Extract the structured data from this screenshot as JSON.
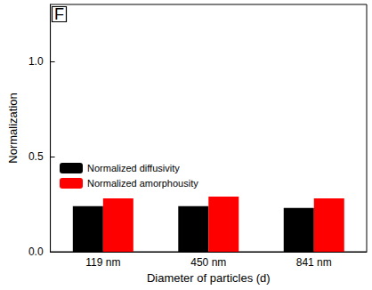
{
  "chart_data": {
    "type": "bar",
    "title": "F",
    "x_label": "Diameter of particles (d)",
    "y_label": "Normalization",
    "categories": [
      "119 nm",
      "450 nm",
      "841 nm"
    ],
    "series": [
      {
        "name": "Normalized diffusivity",
        "color": "#000000",
        "values": [
          0.24,
          0.24,
          0.23
        ]
      },
      {
        "name": "Normalized amorphousity",
        "color": "#ff0000",
        "values": [
          0.28,
          0.29,
          0.28
        ]
      }
    ],
    "ylim": [
      0,
      1.3
    ],
    "yticks": [
      {
        "value": 0,
        "label": "0.0"
      },
      0.5,
      {
        "value": 1,
        "label": "1.0"
      }
    ],
    "legend": "left",
    "grid": false
  }
}
